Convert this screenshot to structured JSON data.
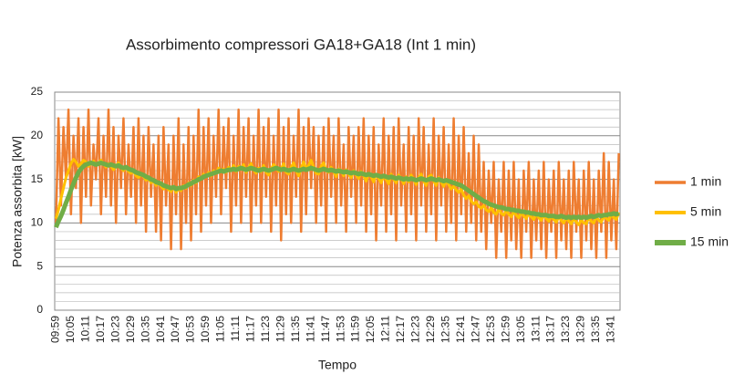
{
  "chart_data": {
    "type": "line",
    "title": "Assorbimento compressori GA18+GA18 (Int  1 min)",
    "x_label": "Tempo",
    "y_label": "Potenza assorbita [kW]",
    "ylim": [
      0,
      25
    ],
    "yticks": [
      0,
      5,
      10,
      15,
      20,
      25
    ],
    "minor_yticks": [
      1,
      2,
      3,
      4,
      6,
      7,
      8,
      9,
      11,
      12,
      13,
      14,
      16,
      17,
      18,
      19,
      21,
      22,
      23,
      24
    ],
    "grid": true,
    "legend": "right",
    "categories": [
      "09:59",
      null,
      null,
      null,
      null,
      null,
      "10:05",
      null,
      null,
      null,
      null,
      null,
      "10:11",
      null,
      null,
      null,
      null,
      null,
      "10:17",
      null,
      null,
      null,
      null,
      null,
      "10:23",
      null,
      null,
      null,
      null,
      null,
      "10:29",
      null,
      null,
      null,
      null,
      null,
      "10:35",
      null,
      null,
      null,
      null,
      null,
      "10:41",
      null,
      null,
      null,
      null,
      null,
      "10:47",
      null,
      null,
      null,
      null,
      null,
      "10:53",
      null,
      null,
      null,
      null,
      null,
      "10:59",
      null,
      null,
      null,
      null,
      null,
      "11:05",
      null,
      null,
      null,
      null,
      null,
      "11:11",
      null,
      null,
      null,
      null,
      null,
      "11:17",
      null,
      null,
      null,
      null,
      null,
      "11:23",
      null,
      null,
      null,
      null,
      null,
      "11:29",
      null,
      null,
      null,
      null,
      null,
      "11:35",
      null,
      null,
      null,
      null,
      null,
      "11:41",
      null,
      null,
      null,
      null,
      null,
      "11:47",
      null,
      null,
      null,
      null,
      null,
      "11:53",
      null,
      null,
      null,
      null,
      null,
      "11:59",
      null,
      null,
      null,
      null,
      null,
      "12:05",
      null,
      null,
      null,
      null,
      null,
      "12:11",
      null,
      null,
      null,
      null,
      null,
      "12:17",
      null,
      null,
      null,
      null,
      null,
      "12:23",
      null,
      null,
      null,
      null,
      null,
      "12:29",
      null,
      null,
      null,
      null,
      null,
      "12:35",
      null,
      null,
      null,
      null,
      null,
      "12:41",
      null,
      null,
      null,
      null,
      null,
      "12:47",
      null,
      null,
      null,
      null,
      null,
      "12:53",
      null,
      null,
      null,
      null,
      null,
      "12:59",
      null,
      null,
      null,
      null,
      null,
      "13:05",
      null,
      null,
      null,
      null,
      null,
      "13:11",
      null,
      null,
      null,
      null,
      null,
      "13:17",
      null,
      null,
      null,
      null,
      null,
      "13:23",
      null,
      null,
      null,
      null,
      null,
      "13:29",
      null,
      null,
      null,
      null,
      null,
      "13:35",
      null,
      null,
      null,
      null,
      null,
      "13:41",
      null,
      null,
      null
    ],
    "series": [
      {
        "name": "1 min",
        "color": "#ee7d31",
        "width": 2.5,
        "values": [
          10,
          22,
          12,
          21,
          15,
          23,
          11,
          20,
          14,
          22,
          10,
          21,
          13,
          23,
          12,
          19,
          15,
          22,
          11,
          20,
          13,
          23,
          12,
          21,
          10,
          20,
          14,
          22,
          11,
          19,
          13,
          21,
          10,
          22,
          12,
          20,
          9,
          21,
          13,
          19,
          9,
          20,
          8,
          21,
          12,
          19,
          7,
          20,
          11,
          22,
          7,
          19,
          10,
          21,
          8,
          20,
          11,
          23,
          9,
          21,
          12,
          22,
          10,
          20,
          13,
          23,
          11,
          21,
          14,
          22,
          9,
          20,
          12,
          23,
          10,
          21,
          13,
          22,
          9,
          20,
          12,
          23,
          10,
          21,
          13,
          22,
          9,
          20,
          12,
          23,
          8,
          21,
          11,
          22,
          10,
          20,
          13,
          23,
          9,
          21,
          11,
          22,
          14,
          21,
          10,
          20,
          12,
          21,
          9,
          22,
          13,
          20,
          10,
          22,
          12,
          19,
          9,
          21,
          13,
          20,
          10,
          21,
          12,
          22,
          9,
          20,
          11,
          21,
          8,
          19,
          12,
          22,
          9,
          20,
          11,
          21,
          8,
          22,
          12,
          19,
          9,
          21,
          11,
          20,
          8,
          22,
          12,
          21,
          9,
          19,
          11,
          22,
          8,
          20,
          12,
          21,
          9,
          19,
          10,
          22,
          8,
          20,
          11,
          21,
          9,
          18,
          10,
          20,
          8,
          19,
          9,
          17,
          7,
          16,
          10,
          17,
          6,
          15,
          9,
          17,
          6,
          16,
          8,
          17,
          7,
          15,
          6,
          16,
          9,
          17,
          6,
          15,
          8,
          16,
          7,
          17,
          6,
          15,
          9,
          16,
          6,
          17,
          8,
          15,
          7,
          16,
          6,
          17,
          9,
          15,
          6,
          16,
          8,
          17,
          7,
          15,
          6,
          16,
          9,
          18,
          6,
          17,
          8,
          15,
          7,
          18
        ]
      },
      {
        "name": "5 min",
        "color": "#ffc000",
        "width": 3,
        "values": [
          10.5,
          11.5,
          12.8,
          14.0,
          15.2,
          16.0,
          16.8,
          17.3,
          17.0,
          16.5,
          16.8,
          17.2,
          17.0,
          16.5,
          16.8,
          17.1,
          16.6,
          16.9,
          17.2,
          16.8,
          16.4,
          16.8,
          16.5,
          16.1,
          16.6,
          16.9,
          16.3,
          16.0,
          16.4,
          15.9,
          15.7,
          15.9,
          15.4,
          15.2,
          15.6,
          15.3,
          14.9,
          15.1,
          14.6,
          14.8,
          14.3,
          14.6,
          14.2,
          13.9,
          14.3,
          13.8,
          13.6,
          14.2,
          13.5,
          13.9,
          13.7,
          14.3,
          14.0,
          14.6,
          14.3,
          14.9,
          14.6,
          15.3,
          15.0,
          15.6,
          15.3,
          15.8,
          15.4,
          16.0,
          15.7,
          16.3,
          15.9,
          16.2,
          15.8,
          16.4,
          16.0,
          16.6,
          15.9,
          16.5,
          16.2,
          16.7,
          15.8,
          16.4,
          16.8,
          16.1,
          15.7,
          16.3,
          15.9,
          16.6,
          15.8,
          15.5,
          16.2,
          16.7,
          16.4,
          15.9,
          16.2,
          16.8,
          15.8,
          15.6,
          16.4,
          16.9,
          16.0,
          15.4,
          16.3,
          17.0,
          16.2,
          16.6,
          17.2,
          16.4,
          15.7,
          15.6,
          16.5,
          16.9,
          16.0,
          15.8,
          16.4,
          15.9,
          15.3,
          16.2,
          16.0,
          15.4,
          16.1,
          15.6,
          15.2,
          16.0,
          15.5,
          15.1,
          15.9,
          15.4,
          14.8,
          15.7,
          15.3,
          14.7,
          15.6,
          15.1,
          14.6,
          15.4,
          15.0,
          14.5,
          15.6,
          15.0,
          14.6,
          15.5,
          15.1,
          14.5,
          15.3,
          14.7,
          15.5,
          15.0,
          14.4,
          15.2,
          15.6,
          14.8,
          14.3,
          15.3,
          15.5,
          14.8,
          14.3,
          15.2,
          14.7,
          14.2,
          14.9,
          14.4,
          13.9,
          14.2,
          13.8,
          13.5,
          13.9,
          13.2,
          12.8,
          13.1,
          12.5,
          12.2,
          12.4,
          11.9,
          11.7,
          12.0,
          11.5,
          11.3,
          11.8,
          11.2,
          11.0,
          11.6,
          11.1,
          10.9,
          11.4,
          11.0,
          10.7,
          11.3,
          10.9,
          10.6,
          11.2,
          10.8,
          10.5,
          11.1,
          10.7,
          10.4,
          11.0,
          10.6,
          10.3,
          10.9,
          10.5,
          10.2,
          10.8,
          10.4,
          10.1,
          10.7,
          10.3,
          10.0,
          10.6,
          10.2,
          9.9,
          10.5,
          10.1,
          9.8,
          10.4,
          10.0,
          9.9,
          10.6,
          10.2,
          10.0,
          10.7,
          10.3,
          10.1,
          10.8,
          10.5,
          10.3,
          11.0,
          10.6,
          10.4,
          11.2
        ]
      },
      {
        "name": "15 min",
        "color": "#70ad47",
        "width": 5,
        "values": [
          9.5,
          10.2,
          10.8,
          11.5,
          12.3,
          13.0,
          13.8,
          14.5,
          15.2,
          15.8,
          16.2,
          16.5,
          16.7,
          16.8,
          16.9,
          16.8,
          16.7,
          16.8,
          16.9,
          16.8,
          16.7,
          16.6,
          16.7,
          16.6,
          16.5,
          16.6,
          16.4,
          16.3,
          16.4,
          16.2,
          16.1,
          16.0,
          15.8,
          15.7,
          15.6,
          15.5,
          15.3,
          15.2,
          15.0,
          14.9,
          14.7,
          14.6,
          14.5,
          14.3,
          14.2,
          14.1,
          14.0,
          14.1,
          13.9,
          14.0,
          14.0,
          14.1,
          14.2,
          14.4,
          14.5,
          14.7,
          14.8,
          15.0,
          15.1,
          15.3,
          15.4,
          15.5,
          15.6,
          15.7,
          15.8,
          15.9,
          16.0,
          15.9,
          16.0,
          16.1,
          16.1,
          16.2,
          16.1,
          16.2,
          16.3,
          16.2,
          16.1,
          16.2,
          16.3,
          16.2,
          16.1,
          16.0,
          16.1,
          16.2,
          16.1,
          16.0,
          16.1,
          16.2,
          16.3,
          16.2,
          16.1,
          16.2,
          16.1,
          16.0,
          16.1,
          16.2,
          16.1,
          16.0,
          16.1,
          16.2,
          16.1,
          16.2,
          16.3,
          16.2,
          16.1,
          16.0,
          16.1,
          16.2,
          16.1,
          16.0,
          16.1,
          16.0,
          15.9,
          16.0,
          15.9,
          15.8,
          15.9,
          15.8,
          15.7,
          15.8,
          15.7,
          15.6,
          15.7,
          15.6,
          15.5,
          15.6,
          15.5,
          15.4,
          15.5,
          15.4,
          15.3,
          15.4,
          15.3,
          15.2,
          15.3,
          15.2,
          15.1,
          15.2,
          15.1,
          15.0,
          15.1,
          15.0,
          15.1,
          15.0,
          14.9,
          15.0,
          15.1,
          15.0,
          14.9,
          15.0,
          15.1,
          15.0,
          14.9,
          15.0,
          14.9,
          14.8,
          14.9,
          14.8,
          14.7,
          14.6,
          14.5,
          14.4,
          14.3,
          14.1,
          13.9,
          13.7,
          13.5,
          13.3,
          13.1,
          12.9,
          12.7,
          12.5,
          12.4,
          12.2,
          12.1,
          12.0,
          11.9,
          11.8,
          11.8,
          11.7,
          11.6,
          11.6,
          11.5,
          11.5,
          11.4,
          11.4,
          11.3,
          11.3,
          11.2,
          11.2,
          11.1,
          11.1,
          11.0,
          11.0,
          10.9,
          10.9,
          10.9,
          10.8,
          10.8,
          10.8,
          10.7,
          10.7,
          10.8,
          10.7,
          10.6,
          10.7,
          10.6,
          10.7,
          10.6,
          10.7,
          10.6,
          10.7,
          10.6,
          10.7,
          10.8,
          10.7,
          10.8,
          10.9,
          10.8,
          10.9,
          10.9,
          11.0,
          11.0,
          11.1,
          11.0,
          11.1
        ]
      }
    ]
  }
}
